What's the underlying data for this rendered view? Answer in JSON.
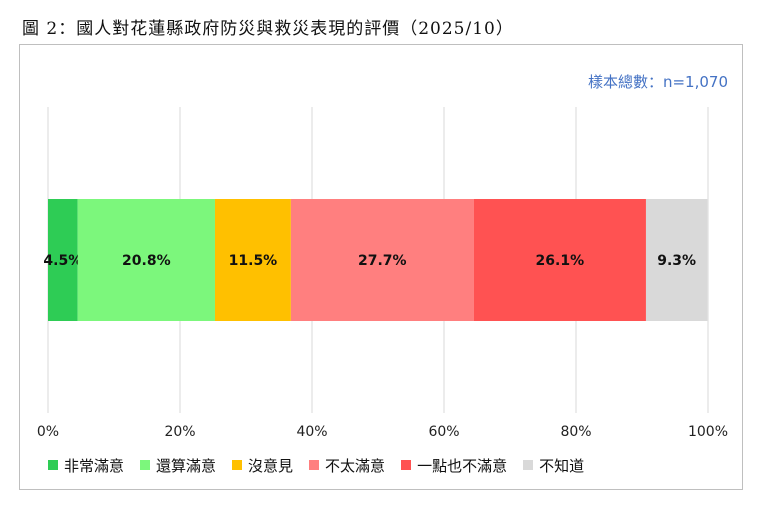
{
  "header": {
    "title": "圖 2：國人對花蓮縣政府防災與救災表現的評價（2025/10）"
  },
  "sample_note": "樣本總數：n=1,070",
  "chart_data": {
    "type": "bar",
    "orientation": "horizontal",
    "stacked": true,
    "xlim": [
      0,
      100
    ],
    "x_ticks": [
      "0%",
      "20%",
      "40%",
      "60%",
      "80%",
      "100%"
    ],
    "grid": true,
    "legend_position": "bottom",
    "series": [
      {
        "name": "非常滿意",
        "value": 4.5,
        "label": "4.5%",
        "color": "#2ecc55"
      },
      {
        "name": "還算滿意",
        "value": 20.8,
        "label": "20.8%",
        "color": "#7cf77c"
      },
      {
        "name": "沒意見",
        "value": 11.5,
        "label": "11.5%",
        "color": "#ffc000"
      },
      {
        "name": "不太滿意",
        "value": 27.7,
        "label": "27.7%",
        "color": "#ff7f7f"
      },
      {
        "name": "一點也不滿意",
        "value": 26.1,
        "label": "26.1%",
        "color": "#ff5252"
      },
      {
        "name": "不知道",
        "value": 9.3,
        "label": "9.3%",
        "color": "#d9d9d9"
      }
    ]
  }
}
